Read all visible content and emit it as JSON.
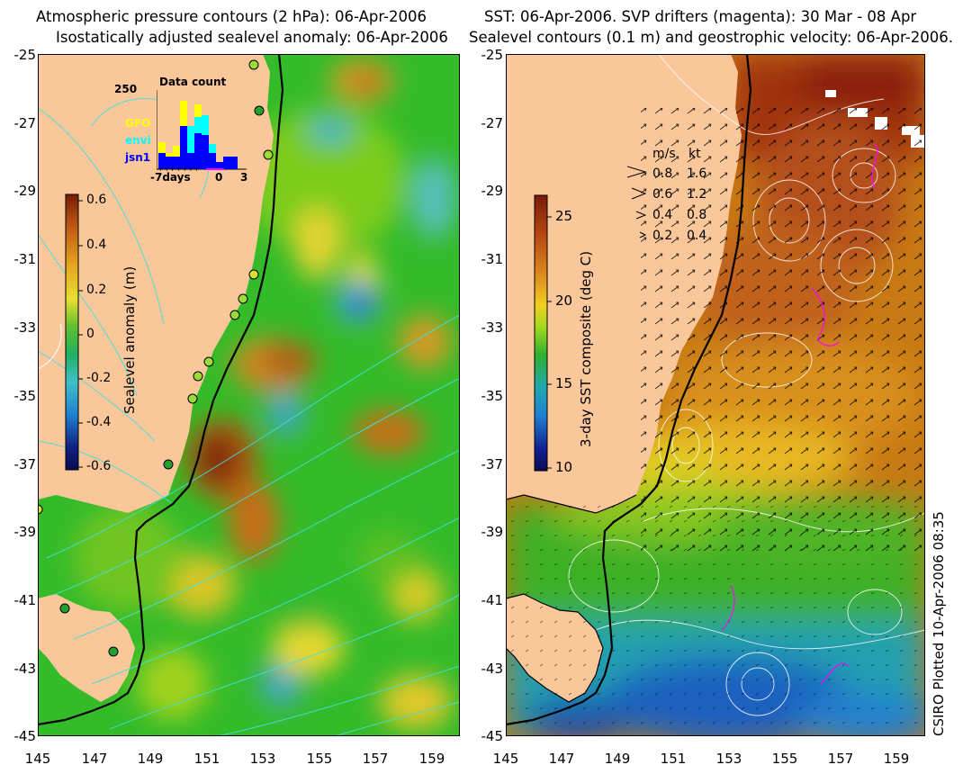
{
  "left_panel": {
    "title_line1": "Atmospheric pressure contours (2 hPa): 06-Apr-2006",
    "title_line2": "Isostatically adjusted sealevel anomaly: 06-Apr-2006",
    "colorbar_label": "Sealevel anomaly (m)",
    "colorbar_ticks": [
      "0.6",
      "0.4",
      "0.2",
      "0",
      "-0.2",
      "-0.4",
      "-0.6"
    ],
    "inset": {
      "title": "Data count",
      "ymax_label": "250",
      "legend": [
        {
          "name": "GFO",
          "color": "#ffff00"
        },
        {
          "name": "envi",
          "color": "#00ffff"
        },
        {
          "name": "jsn1",
          "color": "#0000ff"
        }
      ],
      "x_labels": [
        "-7days",
        "0",
        "3"
      ]
    }
  },
  "right_panel": {
    "title_line1": "SST: 06-Apr-2006. SVP drifters (magenta): 30 Mar - 08 Apr",
    "title_line2": "Sealevel contours (0.1 m) and geostrophic velocity: 06-Apr-2006.",
    "colorbar_label": "3-day SST composite (deg C)",
    "colorbar_ticks": [
      "25",
      "20",
      "15",
      "10"
    ],
    "velocity_legend": {
      "header_ms": "m/s",
      "header_kt": "kt",
      "rows": [
        {
          "ms": "0.8",
          "kt": "1.6"
        },
        {
          "ms": "0.6",
          "kt": "1.2"
        },
        {
          "ms": "0.4",
          "kt": "0.8"
        },
        {
          "ms": "0.2",
          "kt": "0.4"
        }
      ]
    }
  },
  "axes": {
    "y_ticks": [
      "-25",
      "-27",
      "-29",
      "-31",
      "-33",
      "-35",
      "-37",
      "-39",
      "-41",
      "-43",
      "-45"
    ],
    "x_ticks": [
      "145",
      "147",
      "149",
      "151",
      "153",
      "155",
      "157",
      "159"
    ]
  },
  "credit": "CSIRO Plotted 10-Apr-2006 08:35",
  "colors": {
    "land": "#f9c79a",
    "coast_line": "#000000",
    "contour_cyan": "#40e0e0",
    "contour_white": "#ffffff",
    "drifter_magenta": "#ff00ff"
  }
}
